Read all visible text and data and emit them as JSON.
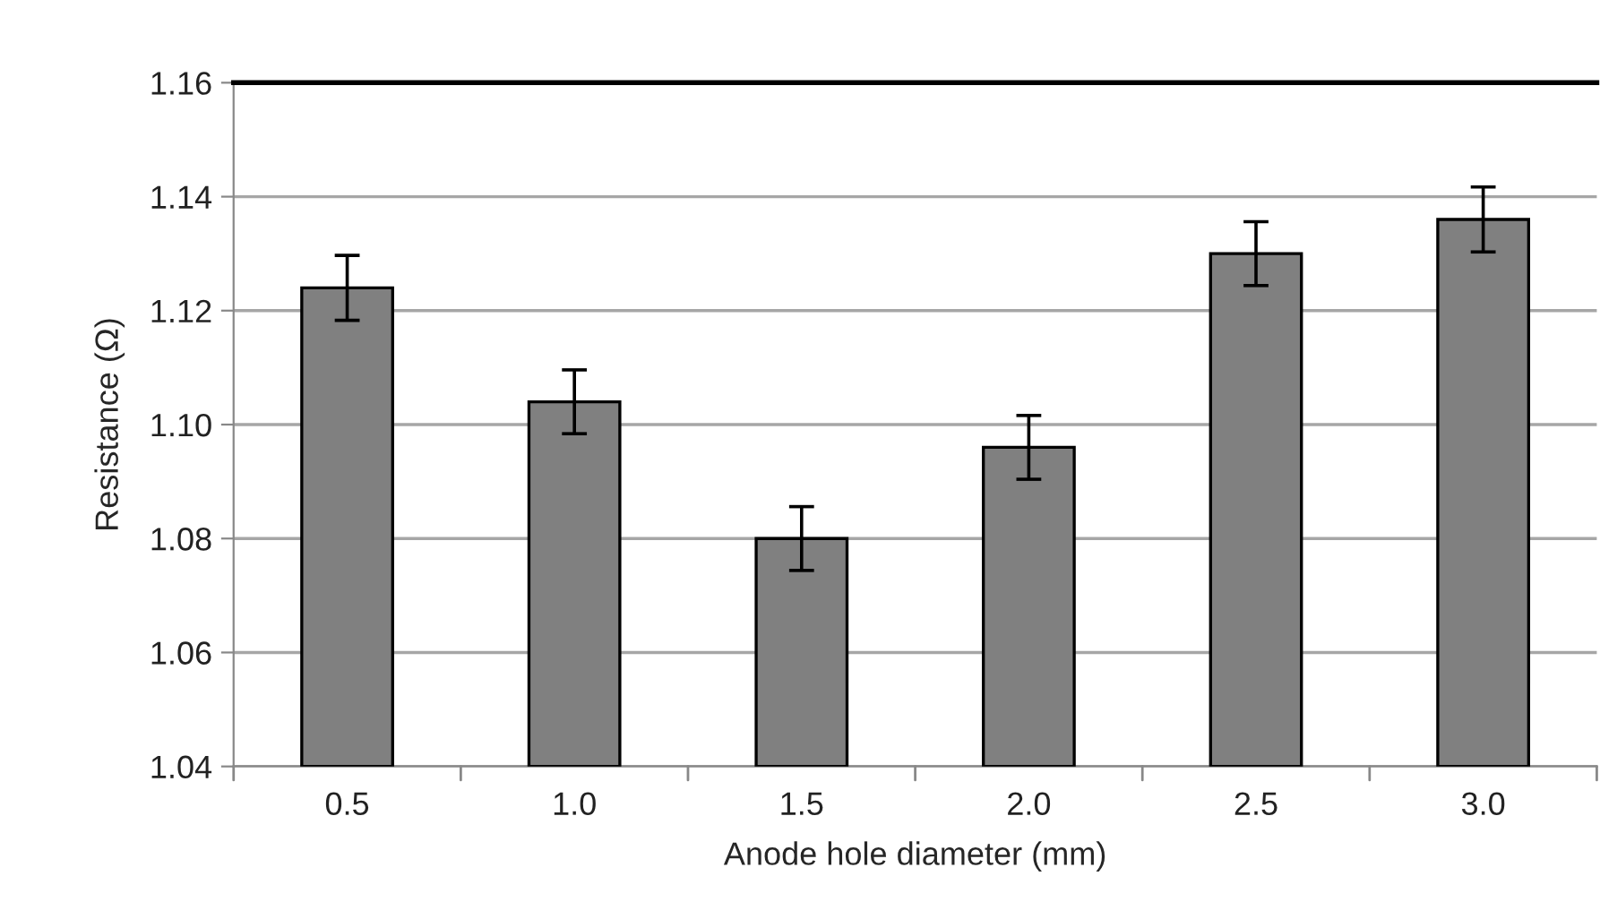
{
  "chart_data": {
    "type": "bar",
    "xlabel": "Anode hole diameter (mm)",
    "ylabel": "Resistance (Ω)",
    "categories": [
      "0.5",
      "1.0",
      "1.5",
      "2.0",
      "2.5",
      "3.0"
    ],
    "values": [
      1.124,
      1.104,
      1.08,
      1.096,
      1.13,
      1.136
    ],
    "errors": [
      0.0057,
      0.0056,
      0.0056,
      0.0056,
      0.0056,
      0.0057
    ],
    "color": "#808080",
    "ylim": [
      1.04,
      1.16
    ],
    "yticks": [
      {
        "value": 1.04,
        "label": "1.04"
      },
      {
        "value": 1.06,
        "label": "1.06"
      },
      {
        "value": 1.08,
        "label": "1.08"
      },
      {
        "value": 1.1,
        "label": "1.10"
      },
      {
        "value": 1.12,
        "label": "1.12"
      },
      {
        "value": 1.14,
        "label": "1.14"
      },
      {
        "value": 1.16,
        "label": "1.16"
      }
    ],
    "grid": "y",
    "legend": false
  }
}
